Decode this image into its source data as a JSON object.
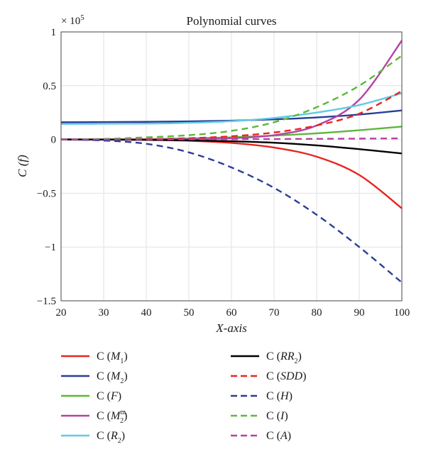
{
  "chart_data": {
    "type": "line",
    "title": "Polynomial curves",
    "xlabel": "X-axis",
    "ylabel": "C (f)",
    "multiplier_label": "× 10",
    "multiplier_exponent": "5",
    "xlim": [
      20,
      100
    ],
    "ylim": [
      -1.5,
      1
    ],
    "xticks": [
      20,
      30,
      40,
      50,
      60,
      70,
      80,
      90,
      100
    ],
    "xtick_labels": [
      "20",
      "30",
      "40",
      "50",
      "60",
      "70",
      "80",
      "90",
      "100"
    ],
    "yticks": [
      -1.5,
      -1,
      -0.5,
      0,
      0.5,
      1
    ],
    "ytick_labels": [
      "−1.5",
      "−1",
      "−0.5",
      "0",
      "0.5",
      "1"
    ],
    "grid": true,
    "legend_position": "bottom",
    "x": [
      20,
      30,
      40,
      50,
      60,
      70,
      80,
      90,
      100
    ],
    "series": [
      {
        "name": "C (M1)",
        "base": "C (",
        "var": "M",
        "sub": "1",
        "sup": "",
        "tail": ")",
        "color": "#e8251f",
        "dash": false,
        "values": [
          0,
          -0.001,
          -0.004,
          -0.012,
          -0.032,
          -0.075,
          -0.16,
          -0.33,
          -0.64
        ]
      },
      {
        "name": "C (M2)",
        "base": "C (",
        "var": "M",
        "sub": "2",
        "sup": "",
        "tail": ")",
        "color": "#2a3e98",
        "dash": false,
        "values": [
          0.16,
          0.162,
          0.164,
          0.168,
          0.175,
          0.187,
          0.205,
          0.232,
          0.27
        ]
      },
      {
        "name": "C (F)",
        "base": "C (",
        "var": "F",
        "sub": "",
        "sup": "",
        "tail": ")",
        "color": "#5cb83a",
        "dash": false,
        "values": [
          0,
          0.001,
          0.004,
          0.01,
          0.02,
          0.036,
          0.057,
          0.086,
          0.12
        ]
      },
      {
        "name": "C (M2m)",
        "base": "C (",
        "var": "M",
        "sub": "2",
        "sup": "m",
        "tail": ")",
        "color": "#b442a6",
        "dash": false,
        "values": [
          0,
          0,
          0.001,
          0.003,
          0.012,
          0.04,
          0.13,
          0.37,
          0.92
        ]
      },
      {
        "name": "C (R2)",
        "base": "C (",
        "var": "R",
        "sub": "2",
        "sup": "",
        "tail": ")",
        "color": "#5ecbe4",
        "dash": false,
        "values": [
          0.145,
          0.146,
          0.148,
          0.155,
          0.17,
          0.2,
          0.25,
          0.32,
          0.43
        ]
      },
      {
        "name": "C (RR2)",
        "base": "C (",
        "var": "RR",
        "sub": "2",
        "sup": "",
        "tail": ")",
        "color": "#000000",
        "dash": false,
        "values": [
          0,
          -0.001,
          -0.003,
          -0.008,
          -0.016,
          -0.03,
          -0.055,
          -0.09,
          -0.13
        ]
      },
      {
        "name": "C (SDD)",
        "base": "C (",
        "var": "SDD",
        "sub": "",
        "sup": "",
        "tail": ")",
        "color": "#e8251f",
        "dash": true,
        "values": [
          0,
          0.001,
          0.004,
          0.012,
          0.03,
          0.065,
          0.13,
          0.24,
          0.45
        ]
      },
      {
        "name": "C (H)",
        "base": "C (",
        "var": "H",
        "sub": "",
        "sup": "",
        "tail": ")",
        "color": "#2a3e98",
        "dash": true,
        "values": [
          0,
          -0.01,
          -0.04,
          -0.12,
          -0.26,
          -0.45,
          -0.7,
          -1.0,
          -1.33
        ]
      },
      {
        "name": "C (I)",
        "base": "C (",
        "var": "I",
        "sub": "",
        "sup": "",
        "tail": ")",
        "color": "#5cb83a",
        "dash": true,
        "values": [
          0,
          0.005,
          0.02,
          0.04,
          0.08,
          0.16,
          0.3,
          0.5,
          0.78
        ]
      },
      {
        "name": "C (A)",
        "base": "C (",
        "var": "A",
        "sub": "",
        "sup": "",
        "tail": ")",
        "color": "#b442a6",
        "dash": true,
        "values": [
          0,
          0,
          0.001,
          0.002,
          0.003,
          0.004,
          0.006,
          0.008,
          0.01
        ]
      }
    ]
  }
}
